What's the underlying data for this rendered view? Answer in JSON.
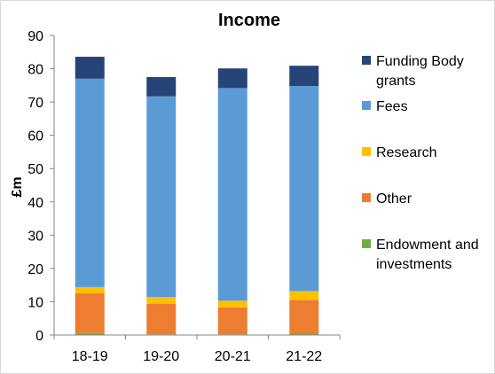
{
  "chart_data": {
    "type": "bar",
    "stacked": true,
    "title": "Income",
    "xlabel": "",
    "ylabel": "£m",
    "ylim": [
      0,
      90
    ],
    "yticks": [
      0,
      10,
      20,
      30,
      40,
      50,
      60,
      70,
      80,
      90
    ],
    "grid": false,
    "legend_position": "right",
    "categories": [
      "18-19",
      "19-20",
      "20-21",
      "21-22"
    ],
    "series": [
      {
        "name": "Endowment and investments",
        "color": "#70ad47",
        "values": [
          0.6,
          0.2,
          0.2,
          0.4
        ]
      },
      {
        "name": "Other",
        "color": "#ed7d31",
        "values": [
          11.9,
          9.2,
          8.1,
          10.1
        ]
      },
      {
        "name": "Research",
        "color": "#ffc000",
        "values": [
          1.9,
          2.0,
          2.0,
          2.7
        ]
      },
      {
        "name": "Fees",
        "color": "#5b9bd5",
        "values": [
          62.6,
          60.3,
          63.9,
          61.6
        ]
      },
      {
        "name": "Funding Body grants",
        "color": "#264478",
        "values": [
          6.6,
          5.8,
          5.9,
          6.1
        ]
      }
    ],
    "legend_order": [
      {
        "lines": [
          "Funding Body",
          "grants"
        ],
        "color": "#264478"
      },
      {
        "lines": [
          "Fees"
        ],
        "color": "#5b9bd5"
      },
      {
        "lines": [
          "Research"
        ],
        "color": "#ffc000"
      },
      {
        "lines": [
          "Other"
        ],
        "color": "#ed7d31"
      },
      {
        "lines": [
          "Endowment and",
          "investments"
        ],
        "color": "#70ad47"
      }
    ]
  }
}
